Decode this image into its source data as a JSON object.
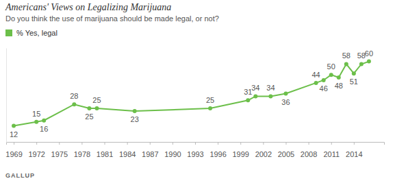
{
  "chart_data": {
    "type": "line",
    "title": "Americans' Views on Legalizing Marijuana",
    "subtitle": "Do you think the use of marijuana should be made legal, or not?",
    "annotations": [
      "GALLUP"
    ],
    "x": [
      1969,
      1972,
      1973,
      1977,
      1979,
      1980,
      1985,
      1995,
      2000,
      2001,
      2003,
      2005,
      2009,
      2010,
      2011,
      2012,
      2013,
      2014,
      2015,
      2016
    ],
    "series": [
      {
        "name": "% Yes, legal",
        "color": "#6cbf4a",
        "marker": "circle",
        "values": [
          12,
          15,
          16,
          28,
          25,
          25,
          23,
          25,
          31,
          34,
          34,
          36,
          44,
          46,
          50,
          48,
          58,
          51,
          58,
          60
        ]
      }
    ],
    "xlim": [
      1968,
      2018
    ],
    "xticks": [
      1969,
      1972,
      1975,
      1978,
      1981,
      1984,
      1987,
      1990,
      1993,
      1996,
      1999,
      2002,
      2005,
      2008,
      2011,
      2014
    ],
    "ylim": [
      0,
      70
    ],
    "tick_labels": "x",
    "grid": false,
    "legend": "top-left",
    "data_labels": true
  }
}
